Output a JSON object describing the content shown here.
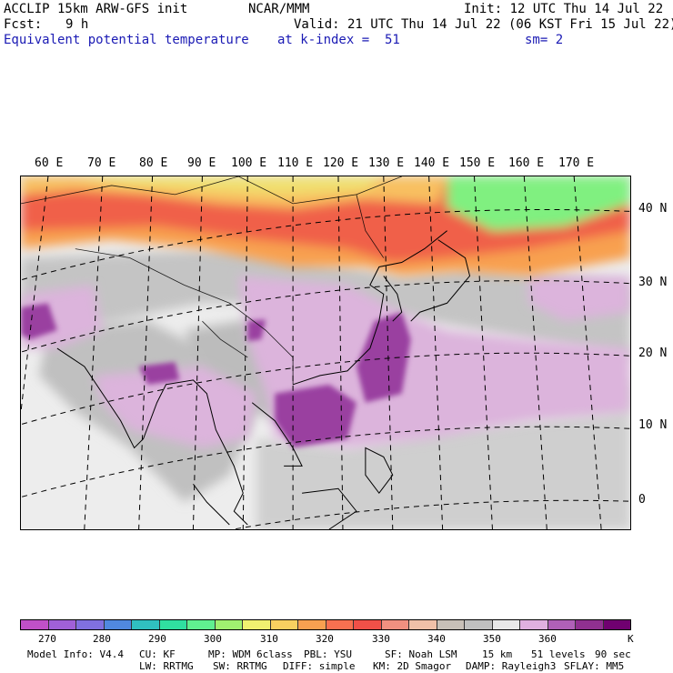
{
  "header": {
    "model_line": "ACCLIP 15km ARW-GFS init",
    "center": "NCAR/MMM",
    "init": "Init: 12 UTC Thu 14 Jul 22",
    "fcst_label": "Fcst:",
    "fcst_value": "9 h",
    "valid": "Valid: 21 UTC Thu 14 Jul 22 (06 KST Fri 15 Jul 22)",
    "field": "Equivalent potential temperature",
    "level": "at k-index =  51",
    "smoothing": "sm= 2"
  },
  "map": {
    "lon_labels": [
      "60 E",
      "70 E",
      "80 E",
      "90 E",
      "100 E",
      "110 E",
      "120 E",
      "130 E",
      "140 E",
      "150 E",
      "160 E",
      "170 E"
    ],
    "lat_labels": [
      "40 N",
      "30 N",
      "20 N",
      "10 N",
      "0"
    ]
  },
  "colorbar": {
    "colors": [
      "#c050c8",
      "#a060d8",
      "#8070e0",
      "#5088e0",
      "#30c0c0",
      "#30e0a0",
      "#60f090",
      "#a0f070",
      "#f0f070",
      "#f8d060",
      "#f8a050",
      "#f87050",
      "#f05048",
      "#f09080",
      "#f0c0a8",
      "#c8c0b8",
      "#c0c0c0",
      "#e8e8e8",
      "#e0b0e0",
      "#b060b8",
      "#903090",
      "#700070"
    ],
    "ticks": [
      "270",
      "280",
      "290",
      "300",
      "310",
      "320",
      "330",
      "340",
      "350",
      "360"
    ],
    "unit": "K"
  },
  "footer": {
    "line1": [
      "Model Info: V4.4",
      "CU: KF",
      "MP: WDM 6class",
      "PBL: YSU",
      "SF: Noah LSM",
      "15 km",
      "51 levels",
      "90 sec"
    ],
    "line2": [
      "LW: RRTMG",
      "SW: RRTMG",
      "DIFF: simple",
      "KM: 2D Smagor",
      "DAMP: Rayleigh3",
      "SFLAY: MM5"
    ]
  },
  "palette": {
    "land_gray": "#bdbdbd",
    "ocean_light": "#ededed",
    "purple_light": "#dcb4dc",
    "purple_dark": "#9a40a0",
    "red": "#f06048",
    "orange": "#f8a050",
    "yellow": "#f0e070",
    "green": "#80f080"
  }
}
